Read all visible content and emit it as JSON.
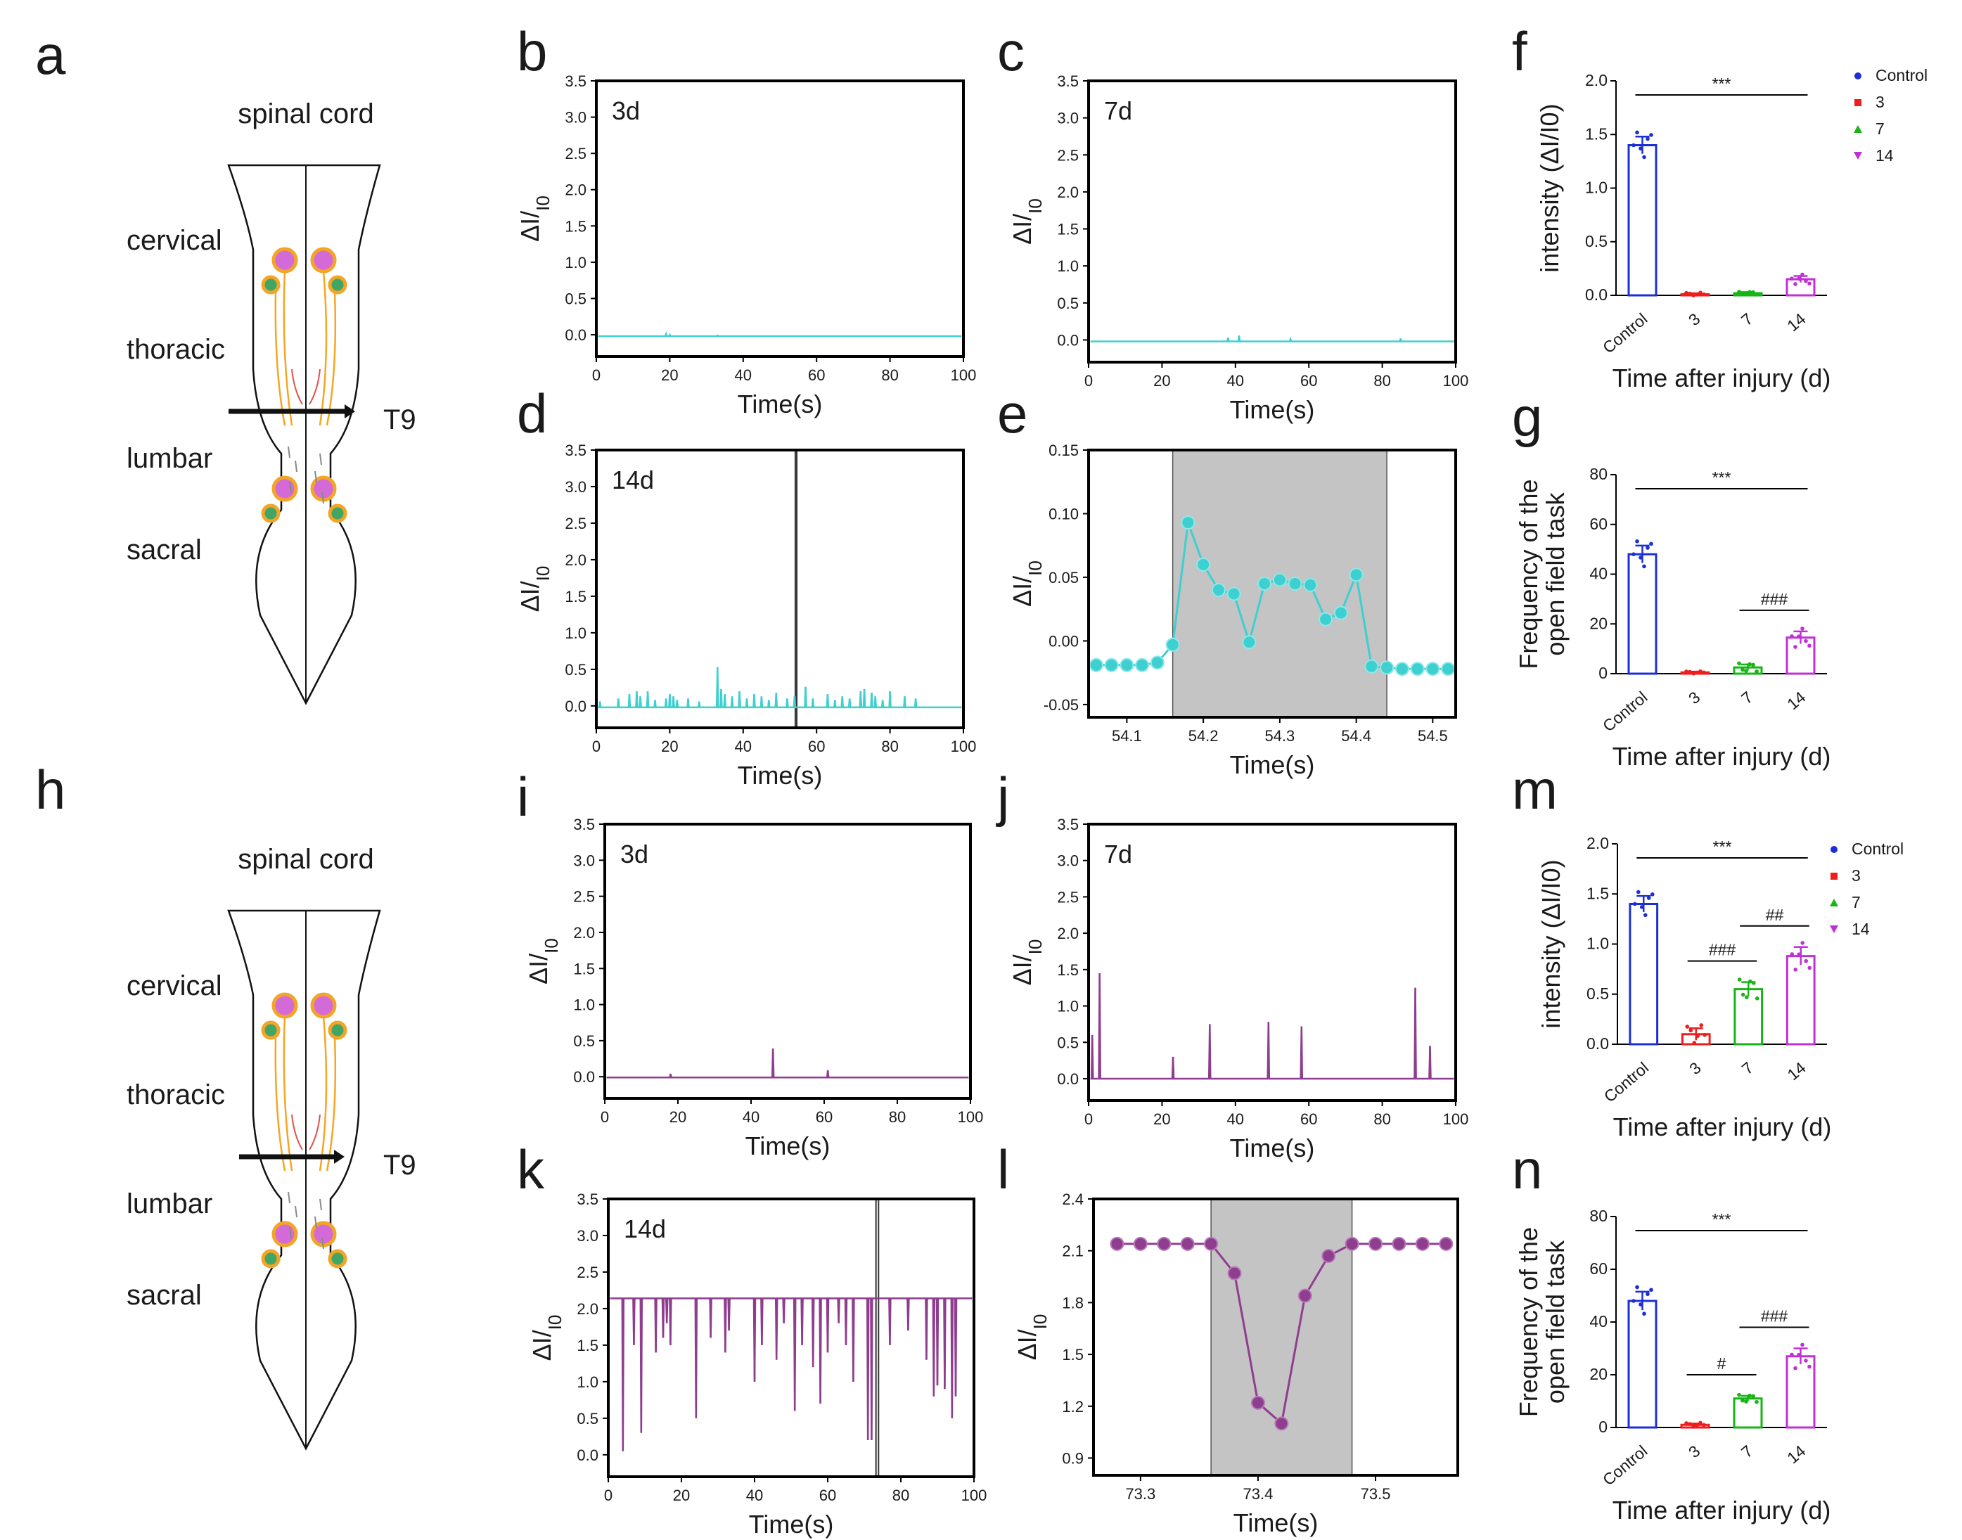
{
  "figure": {
    "panels": [
      "a",
      "b",
      "c",
      "d",
      "e",
      "f",
      "g",
      "h",
      "i",
      "j",
      "k",
      "l",
      "m",
      "n"
    ],
    "diagram": {
      "title": "spinal cord",
      "regions": [
        "cervical",
        "thoracic",
        "lumbar",
        "sacral"
      ],
      "injury_label": "T9"
    }
  },
  "chart_data": [
    {
      "id": "b",
      "type": "line",
      "inset": "3d",
      "color": "#3ecfd0",
      "xlabel": "Time(s)",
      "ylabel": "ΔI/I0",
      "xlim": [
        0,
        100
      ],
      "ylim": [
        -0.3,
        3.5
      ],
      "xticks": [
        0,
        20,
        40,
        60,
        80,
        100
      ],
      "yticks": [
        0.0,
        0.5,
        1.0,
        1.5,
        2.0,
        2.5,
        3.0,
        3.5
      ],
      "baseline": -0.02,
      "spikes": [
        [
          19,
          0.03
        ],
        [
          20,
          0.02
        ],
        [
          33,
          0.01
        ]
      ]
    },
    {
      "id": "c",
      "type": "line",
      "inset": "7d",
      "color": "#3ecfd0",
      "xlabel": "Time(s)",
      "ylabel": "ΔI/I0",
      "xlim": [
        0,
        100
      ],
      "ylim": [
        -0.3,
        3.5
      ],
      "xticks": [
        0,
        20,
        40,
        60,
        80,
        100
      ],
      "yticks": [
        0.0,
        0.5,
        1.0,
        1.5,
        2.0,
        2.5,
        3.0,
        3.5
      ],
      "baseline": -0.02,
      "spikes": [
        [
          38,
          0.05
        ],
        [
          41,
          0.08
        ],
        [
          55,
          0.03
        ],
        [
          85,
          0.04
        ]
      ]
    },
    {
      "id": "d",
      "type": "line",
      "inset": "14d",
      "color": "#3ecfd0",
      "xlabel": "Time(s)",
      "ylabel": "ΔI/I0",
      "xlim": [
        0,
        100
      ],
      "ylim": [
        -0.3,
        3.5
      ],
      "xticks": [
        0,
        20,
        40,
        60,
        80,
        100
      ],
      "yticks": [
        0.0,
        0.5,
        1.0,
        1.5,
        2.0,
        2.5,
        3.0,
        3.5
      ],
      "baseline": -0.02,
      "highlight": [
        54.2,
        54.6
      ],
      "spikes": [
        [
          1,
          0.08
        ],
        [
          6,
          0.12
        ],
        [
          9,
          0.18
        ],
        [
          11,
          0.22
        ],
        [
          12,
          0.15
        ],
        [
          14,
          0.22
        ],
        [
          16,
          0.1
        ],
        [
          19,
          0.12
        ],
        [
          20,
          0.18
        ],
        [
          21,
          0.15
        ],
        [
          22,
          0.1
        ],
        [
          25,
          0.12
        ],
        [
          28,
          0.08
        ],
        [
          33,
          0.55
        ],
        [
          34,
          0.25
        ],
        [
          35,
          0.18
        ],
        [
          37,
          0.15
        ],
        [
          39,
          0.22
        ],
        [
          41,
          0.12
        ],
        [
          43,
          0.18
        ],
        [
          45,
          0.15
        ],
        [
          47,
          0.1
        ],
        [
          49,
          0.2
        ],
        [
          52,
          0.12
        ],
        [
          54,
          0.15
        ],
        [
          57,
          0.28
        ],
        [
          59,
          0.12
        ],
        [
          63,
          0.18
        ],
        [
          65,
          0.1
        ],
        [
          67,
          0.15
        ],
        [
          69,
          0.12
        ],
        [
          72,
          0.22
        ],
        [
          73,
          0.25
        ],
        [
          75,
          0.2
        ],
        [
          76,
          0.15
        ],
        [
          78,
          0.1
        ],
        [
          80,
          0.22
        ],
        [
          84,
          0.15
        ],
        [
          87,
          0.12
        ]
      ]
    },
    {
      "id": "e",
      "type": "scatter-line",
      "color": "#3ecfd0",
      "xlabel": "Time(s)",
      "ylabel": "ΔI/I0",
      "xlim": [
        54.05,
        54.53
      ],
      "ylim": [
        -0.06,
        0.15
      ],
      "xticks": [
        54.1,
        54.2,
        54.3,
        54.4,
        54.5
      ],
      "yticks": [
        -0.05,
        0.0,
        0.05,
        0.1,
        0.15
      ],
      "highlight": [
        54.16,
        54.44
      ],
      "x": [
        54.06,
        54.08,
        54.1,
        54.12,
        54.14,
        54.16,
        54.18,
        54.2,
        54.22,
        54.24,
        54.26,
        54.28,
        54.3,
        54.32,
        54.34,
        54.36,
        54.38,
        54.4,
        54.42,
        54.44,
        54.46,
        54.48,
        54.5,
        54.52
      ],
      "y": [
        -0.019,
        -0.019,
        -0.019,
        -0.019,
        -0.017,
        -0.003,
        0.093,
        0.06,
        0.04,
        0.037,
        -0.001,
        0.045,
        0.048,
        0.045,
        0.044,
        0.017,
        0.022,
        0.052,
        -0.02,
        -0.021,
        -0.022,
        -0.022,
        -0.022,
        -0.022
      ]
    },
    {
      "id": "f",
      "type": "bar",
      "categories": [
        "Control",
        "3",
        "7",
        "14"
      ],
      "values": [
        1.4,
        0.01,
        0.02,
        0.15
      ],
      "errors": [
        0.08,
        0.01,
        0.01,
        0.03
      ],
      "colors": [
        "#1c2fd6",
        "#f01d1d",
        "#15b515",
        "#c130d6"
      ],
      "ylabel": "intensity (ΔI/I0)",
      "xlabel": "Time after injury (d)",
      "ylim": [
        0,
        2.0
      ],
      "yticks": [
        "0.0",
        "0.5",
        "1.0",
        "1.5",
        "2.0"
      ],
      "annotations": [
        {
          "text": "***",
          "from": 0,
          "to": 3
        }
      ],
      "legend": [
        "Control",
        "3",
        "7",
        "14"
      ]
    },
    {
      "id": "g",
      "type": "bar",
      "categories": [
        "Control",
        "3",
        "7",
        "14"
      ],
      "values": [
        48,
        0.5,
        2.5,
        14.5
      ],
      "errors": [
        3.5,
        0.3,
        1.2,
        2.5
      ],
      "colors": [
        "#1c2fd6",
        "#f01d1d",
        "#15b515",
        "#c130d6"
      ],
      "ylabel": "Frequency of the open field task",
      "xlabel": "Time after injury (d)",
      "ylim": [
        0,
        80
      ],
      "yticks": [
        "0",
        "20",
        "40",
        "60",
        "80"
      ],
      "annotations": [
        {
          "text": "***",
          "from": 0,
          "to": 3
        },
        {
          "text": "###",
          "from": 2,
          "to": 3
        }
      ]
    },
    {
      "id": "i",
      "type": "line",
      "inset": "3d",
      "color": "#8f3d8f",
      "xlabel": "Time(s)",
      "ylabel": "ΔI/I0",
      "xlim": [
        0,
        100
      ],
      "ylim": [
        -0.3,
        3.5
      ],
      "xticks": [
        0,
        20,
        40,
        60,
        80,
        100
      ],
      "yticks": [
        0.0,
        0.5,
        1.0,
        1.5,
        2.0,
        2.5,
        3.0,
        3.5
      ],
      "baseline": -0.01,
      "spikes": [
        [
          18,
          0.05
        ],
        [
          46,
          0.4
        ],
        [
          61,
          0.1
        ]
      ]
    },
    {
      "id": "j",
      "type": "line",
      "inset": "7d",
      "color": "#8f3d8f",
      "xlabel": "Time(s)",
      "ylabel": "ΔI/I0",
      "xlim": [
        0,
        100
      ],
      "ylim": [
        -0.3,
        3.5
      ],
      "xticks": [
        0,
        20,
        40,
        60,
        80,
        100
      ],
      "yticks": [
        0.0,
        0.5,
        1.0,
        1.5,
        2.0,
        2.5,
        3.0,
        3.5
      ],
      "baseline": 0.0,
      "spikes": [
        [
          1,
          0.6
        ],
        [
          3,
          1.45
        ],
        [
          23,
          0.3
        ],
        [
          33,
          0.75
        ],
        [
          49,
          0.78
        ],
        [
          58,
          0.72
        ],
        [
          89,
          1.25
        ],
        [
          93,
          0.45
        ]
      ]
    },
    {
      "id": "k",
      "type": "line",
      "inset": "14d",
      "color": "#8f3d8f",
      "xlabel": "Time(s)",
      "ylabel": "ΔI/I0",
      "xlim": [
        0,
        100
      ],
      "ylim": [
        -0.3,
        3.5
      ],
      "xticks": [
        0,
        20,
        40,
        60,
        80,
        100
      ],
      "yticks": [
        0.0,
        0.5,
        1.0,
        1.5,
        2.0,
        2.5,
        3.0,
        3.5
      ],
      "baseline": 2.14,
      "highlight": [
        73.2,
        73.9
      ],
      "spikes": [
        [
          4,
          0.05
        ],
        [
          7,
          1.5
        ],
        [
          9,
          0.3
        ],
        [
          13,
          1.4
        ],
        [
          15,
          1.6
        ],
        [
          16,
          1.8
        ],
        [
          17,
          1.5
        ],
        [
          24,
          0.5
        ],
        [
          28,
          1.6
        ],
        [
          32,
          1.4
        ],
        [
          33,
          1.7
        ],
        [
          40,
          1.0
        ],
        [
          42,
          1.5
        ],
        [
          46,
          1.3
        ],
        [
          48,
          1.8
        ],
        [
          51,
          0.6
        ],
        [
          53,
          1.5
        ],
        [
          56,
          1.2
        ],
        [
          58,
          0.7
        ],
        [
          60,
          1.4
        ],
        [
          63,
          1.8
        ],
        [
          65,
          1.5
        ],
        [
          67,
          1.0
        ],
        [
          71,
          0.2
        ],
        [
          72,
          0.2
        ],
        [
          77,
          1.5
        ],
        [
          82,
          1.7
        ],
        [
          87,
          1.3
        ],
        [
          89,
          0.8
        ],
        [
          90,
          0.95
        ],
        [
          92,
          0.9
        ],
        [
          94,
          0.5
        ],
        [
          95,
          0.8
        ]
      ]
    },
    {
      "id": "l",
      "type": "scatter-line",
      "color": "#8f3d8f",
      "xlabel": "Time(s)",
      "ylabel": "ΔI/I0",
      "xlim": [
        73.26,
        73.57
      ],
      "ylim": [
        0.8,
        2.4
      ],
      "xticks": [
        73.3,
        73.4,
        73.5
      ],
      "yticks": [
        0.9,
        1.2,
        1.5,
        1.8,
        2.1,
        2.4
      ],
      "highlight": [
        73.36,
        73.48
      ],
      "x": [
        73.28,
        73.3,
        73.32,
        73.34,
        73.36,
        73.38,
        73.4,
        73.42,
        73.44,
        73.46,
        73.48,
        73.5,
        73.52,
        73.54,
        73.56
      ],
      "y": [
        2.14,
        2.14,
        2.14,
        2.14,
        2.14,
        1.97,
        1.22,
        1.1,
        1.84,
        2.07,
        2.14,
        2.14,
        2.14,
        2.14,
        2.14
      ]
    },
    {
      "id": "m",
      "type": "bar",
      "categories": [
        "Control",
        "3",
        "7",
        "14"
      ],
      "values": [
        1.4,
        0.1,
        0.55,
        0.88
      ],
      "errors": [
        0.08,
        0.06,
        0.07,
        0.09
      ],
      "colors": [
        "#1c2fd6",
        "#f01d1d",
        "#15b515",
        "#c130d6"
      ],
      "ylabel": "intensity (ΔI/I0)",
      "xlabel": "Time after injury (d)",
      "ylim": [
        0,
        2.0
      ],
      "yticks": [
        "0.0",
        "0.5",
        "1.0",
        "1.5",
        "2.0"
      ],
      "annotations": [
        {
          "text": "***",
          "from": 0,
          "to": 3
        },
        {
          "text": "###",
          "from": 1,
          "to": 2
        },
        {
          "text": "##",
          "from": 2,
          "to": 3
        }
      ],
      "legend": [
        "Control",
        "3",
        "7",
        "14"
      ]
    },
    {
      "id": "n",
      "type": "bar",
      "categories": [
        "Control",
        "3",
        "7",
        "14"
      ],
      "values": [
        48,
        1.0,
        11,
        27
      ],
      "errors": [
        3.5,
        0.5,
        1.0,
        3.0
      ],
      "colors": [
        "#1c2fd6",
        "#f01d1d",
        "#15b515",
        "#c130d6"
      ],
      "ylabel": "Frequency of the open field task",
      "xlabel": "Time after injury (d)",
      "ylim": [
        0,
        80
      ],
      "yticks": [
        "0",
        "20",
        "40",
        "60",
        "80"
      ],
      "annotations": [
        {
          "text": "***",
          "from": 0,
          "to": 3
        },
        {
          "text": "#",
          "from": 1,
          "to": 2
        },
        {
          "text": "###",
          "from": 2,
          "to": 3
        }
      ]
    }
  ]
}
